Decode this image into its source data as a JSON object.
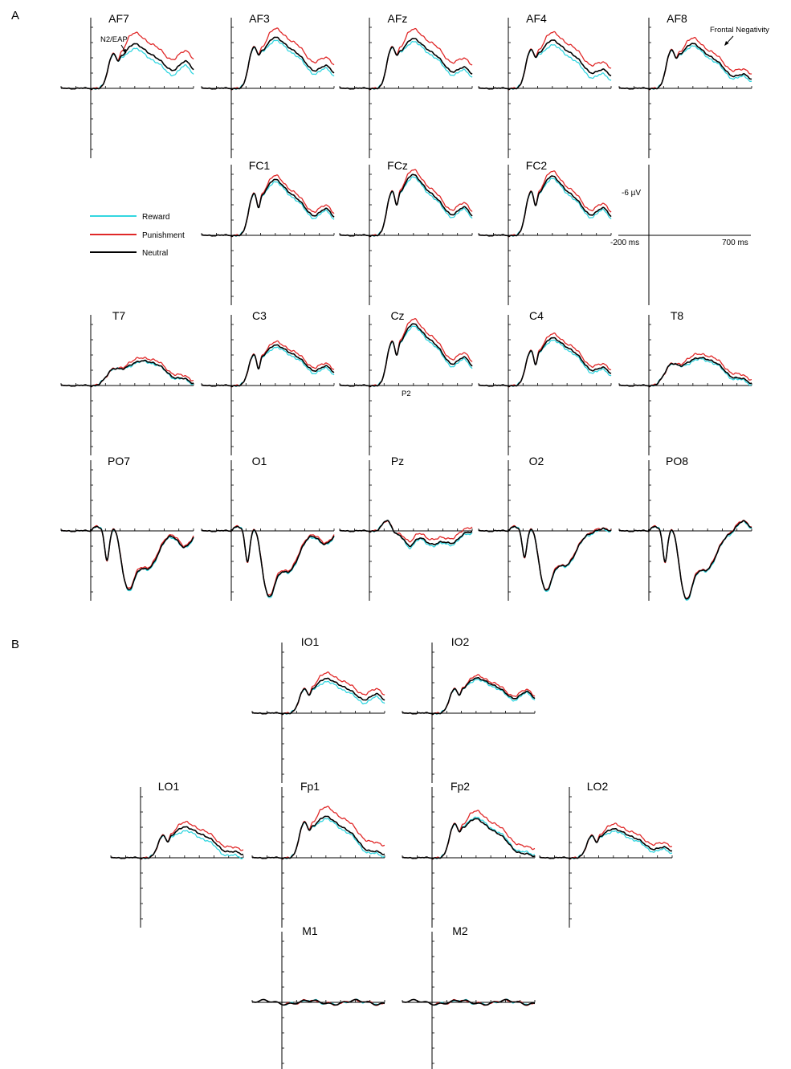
{
  "colors": {
    "reward": "#33d6e0",
    "punishment": "#e02828",
    "neutral": "#000000",
    "axis": "#000000"
  },
  "panel_labels": [
    "A",
    "B"
  ],
  "legend": [
    {
      "key": "reward",
      "label": "Reward"
    },
    {
      "key": "punishment",
      "label": "Punishment"
    },
    {
      "key": "neutral",
      "label": "Neutral"
    }
  ],
  "scale_labels": {
    "amplitude": "-6 µV",
    "x_start": "-200 ms",
    "x_end": "700 ms"
  },
  "annotations": [
    {
      "text": "N2/EAP",
      "electrode": "AF7"
    },
    {
      "text": "Frontal Negativity",
      "electrode": "AF8"
    },
    {
      "text": "P2",
      "electrode": "Cz"
    }
  ],
  "chart_data": {
    "type": "line",
    "title": "",
    "x_unit": "ms",
    "x_range": [
      -200,
      700
    ],
    "y_unit": "µV",
    "y_scale_label": "-6 µV",
    "negative_up": true,
    "series_names": [
      "Reward",
      "Punishment",
      "Neutral"
    ],
    "electrodes": [
      {
        "name": "AF7",
        "group": "A",
        "mode": "front",
        "p": [
          -4.0,
          -4.9,
          -4.0,
          -3.3
        ],
        "diff": {
          "reward": 0.6,
          "punishment": -1.4
        }
      },
      {
        "name": "AF3",
        "group": "A",
        "mode": "front",
        "p": [
          -4.8,
          -5.6,
          -4.6,
          -2.7
        ],
        "diff": {
          "reward": 0.4,
          "punishment": -1.1
        }
      },
      {
        "name": "AFz",
        "group": "A",
        "mode": "front",
        "p": [
          -4.8,
          -5.5,
          -4.4,
          -2.5
        ],
        "diff": {
          "reward": 0.4,
          "punishment": -1.2
        }
      },
      {
        "name": "AF4",
        "group": "A",
        "mode": "front",
        "p": [
          -4.5,
          -5.3,
          -4.3,
          -2.2
        ],
        "diff": {
          "reward": 0.6,
          "punishment": -1.0
        }
      },
      {
        "name": "AF8",
        "group": "A",
        "mode": "front",
        "p": [
          -4.5,
          -5.0,
          -3.8,
          -1.6
        ],
        "diff": {
          "reward": 0.3,
          "punishment": -0.7
        }
      },
      {
        "name": "FC1",
        "group": "A",
        "mode": "central",
        "p": [
          -4.8,
          -6.2,
          -4.8,
          -3.2
        ],
        "diff": {
          "reward": 0.3,
          "punishment": -0.5
        }
      },
      {
        "name": "FCz",
        "group": "A",
        "mode": "central",
        "p": [
          -5.0,
          -6.8,
          -5.0,
          -3.4
        ],
        "diff": {
          "reward": 0.3,
          "punishment": -0.6
        }
      },
      {
        "name": "FC2",
        "group": "A",
        "mode": "central",
        "p": [
          -5.0,
          -6.6,
          -5.0,
          -3.3
        ],
        "diff": {
          "reward": 0.3,
          "punishment": -0.6
        }
      },
      {
        "name": "T7",
        "group": "A",
        "mode": "temporal",
        "p": [
          -1.8,
          -2.8,
          -2.4,
          -0.8
        ],
        "diff": {
          "reward": 0.1,
          "punishment": -0.4
        }
      },
      {
        "name": "C3",
        "group": "A",
        "mode": "central",
        "p": [
          -3.6,
          -4.4,
          -3.8,
          -2.3
        ],
        "diff": {
          "reward": 0.3,
          "punishment": -0.4
        }
      },
      {
        "name": "Cz",
        "group": "A",
        "mode": "central",
        "p": [
          -5.0,
          -6.8,
          -5.4,
          -3.4
        ],
        "diff": {
          "reward": 0.3,
          "punishment": -0.6
        }
      },
      {
        "name": "C4",
        "group": "A",
        "mode": "central",
        "p": [
          -4.0,
          -5.2,
          -4.4,
          -2.1
        ],
        "diff": {
          "reward": 0.3,
          "punishment": -0.5
        }
      },
      {
        "name": "T8",
        "group": "A",
        "mode": "temporal",
        "p": [
          -2.4,
          -3.2,
          -2.6,
          -0.8
        ],
        "diff": {
          "reward": 0.2,
          "punishment": -0.5
        }
      },
      {
        "name": "PO7",
        "group": "A",
        "mode": "occipital",
        "p": [
          3.8,
          6.4,
          5.0,
          2.2
        ],
        "diff": {
          "reward": 0.1,
          "punishment": -0.2
        }
      },
      {
        "name": "O1",
        "group": "A",
        "mode": "occipital",
        "p": [
          4.0,
          7.2,
          5.4,
          1.8
        ],
        "diff": {
          "reward": 0.1,
          "punishment": -0.2
        }
      },
      {
        "name": "Pz",
        "group": "A",
        "mode": "parietal",
        "p": [
          0.4,
          1.8,
          1.6,
          1.4
        ],
        "diff": {
          "reward": 0.2,
          "punishment": -0.6
        }
      },
      {
        "name": "O2",
        "group": "A",
        "mode": "occipital",
        "p": [
          3.4,
          6.6,
          4.6,
          -0.2
        ],
        "diff": {
          "reward": 0.1,
          "punishment": -0.1
        }
      },
      {
        "name": "PO8",
        "group": "A",
        "mode": "occipital",
        "p": [
          4.0,
          7.6,
          5.2,
          -1.2
        ],
        "diff": {
          "reward": 0.1,
          "punishment": -0.1
        }
      },
      {
        "name": "IO1",
        "group": "B",
        "mode": "front",
        "p": [
          -2.8,
          -3.8,
          -3.2,
          -2.3
        ],
        "diff": {
          "reward": 0.4,
          "punishment": -0.7
        }
      },
      {
        "name": "IO2",
        "group": "B",
        "mode": "front",
        "p": [
          -2.8,
          -3.8,
          -3.4,
          -2.6
        ],
        "diff": {
          "reward": 0.2,
          "punishment": -0.3
        }
      },
      {
        "name": "LO1",
        "group": "B",
        "mode": "front",
        "p": [
          -2.6,
          -3.4,
          -2.8,
          -0.6
        ],
        "diff": {
          "reward": 0.5,
          "punishment": -0.6
        }
      },
      {
        "name": "Fp1",
        "group": "B",
        "mode": "front",
        "p": [
          -4.2,
          -4.6,
          -3.6,
          -0.6
        ],
        "diff": {
          "reward": 0.3,
          "punishment": -1.2
        }
      },
      {
        "name": "Fp2",
        "group": "B",
        "mode": "front",
        "p": [
          -4.0,
          -4.4,
          -3.2,
          -0.3
        ],
        "diff": {
          "reward": -0.2,
          "punishment": -1.0
        }
      },
      {
        "name": "LO2",
        "group": "B",
        "mode": "front",
        "p": [
          -2.6,
          -3.2,
          -2.6,
          -1.2
        ],
        "diff": {
          "reward": 0.3,
          "punishment": -0.6
        }
      },
      {
        "name": "M1",
        "group": "B",
        "mode": "flat",
        "p": [
          0,
          0,
          0,
          0
        ],
        "diff": {
          "reward": 0.0,
          "punishment": 0.0
        }
      },
      {
        "name": "M2",
        "group": "B",
        "mode": "flat",
        "p": [
          0,
          0,
          0,
          0
        ],
        "diff": {
          "reward": 0.0,
          "punishment": 0.0
        }
      }
    ]
  }
}
